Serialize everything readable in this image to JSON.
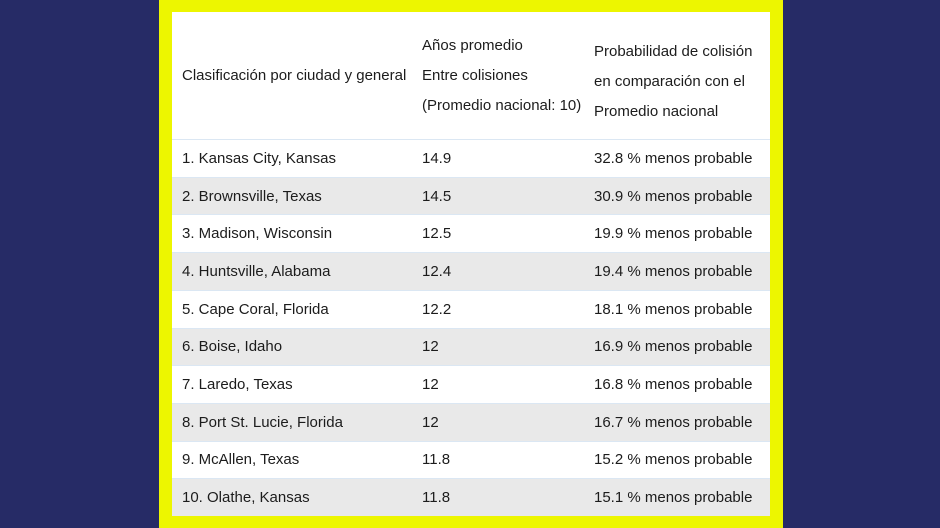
{
  "colors": {
    "page_bg": "#262b66",
    "panel_bg": "#edf600",
    "row_alt_bg": "#e9e9e9",
    "text": "#1c1c1c"
  },
  "table": {
    "header": {
      "col1": "Clasificación por ciudad y general",
      "col2_lines": [
        "Años promedio",
        "Entre colisiones",
        "(Promedio nacional: 10)"
      ],
      "col3_lines": [
        "Probabilidad de colisión",
        "en comparación con el",
        "Promedio nacional"
      ]
    },
    "rows": [
      {
        "city": "1. Kansas City, Kansas",
        "years": "14.9",
        "prob": "32.8 % menos probable"
      },
      {
        "city": "2. Brownsville, Texas",
        "years": "14.5",
        "prob": "30.9 % menos probable"
      },
      {
        "city": "3. Madison, Wisconsin",
        "years": "12.5",
        "prob": "19.9 % menos probable"
      },
      {
        "city": "4. Huntsville, Alabama",
        "years": "12.4",
        "prob": "19.4 % menos probable"
      },
      {
        "city": "5. Cape Coral, Florida",
        "years": "12.2",
        "prob": "18.1 % menos probable"
      },
      {
        "city": "6. Boise, Idaho",
        "years": "12",
        "prob": "16.9 % menos probable"
      },
      {
        "city": "7. Laredo, Texas",
        "years": "12",
        "prob": "16.8 % menos probable"
      },
      {
        "city": "8. Port St. Lucie, Florida",
        "years": "12",
        "prob": "16.7 % menos probable"
      },
      {
        "city": "9. McAllen, Texas",
        "years": "11.8",
        "prob": "15.2 % menos probable"
      },
      {
        "city": "10. Olathe, Kansas",
        "years": "11.8",
        "prob": "15.1 % menos probable"
      }
    ]
  },
  "chart_data": {
    "type": "table",
    "title": "Clasificación por ciudad y general",
    "columns": [
      "Clasificación por ciudad y general",
      "Años promedio entre colisiones (Promedio nacional: 10)",
      "Probabilidad de colisión en comparación con el promedio nacional"
    ],
    "rows": [
      [
        "1. Kansas City, Kansas",
        14.9,
        "32.8 % menos probable"
      ],
      [
        "2. Brownsville, Texas",
        14.5,
        "30.9 % menos probable"
      ],
      [
        "3. Madison, Wisconsin",
        12.5,
        "19.9 % menos probable"
      ],
      [
        "4. Huntsville, Alabama",
        12.4,
        "19.4 % menos probable"
      ],
      [
        "5. Cape Coral, Florida",
        12.2,
        "18.1 % menos probable"
      ],
      [
        "6. Boise, Idaho",
        12,
        "16.9 % menos probable"
      ],
      [
        "7. Laredo, Texas",
        12,
        "16.8 % menos probable"
      ],
      [
        "8. Port St. Lucie, Florida",
        12,
        "16.7 % menos probable"
      ],
      [
        "9. McAllen, Texas",
        11.8,
        "15.2 % menos probable"
      ],
      [
        "10. Olathe, Kansas",
        11.8,
        "15.1 % menos probable"
      ]
    ]
  }
}
